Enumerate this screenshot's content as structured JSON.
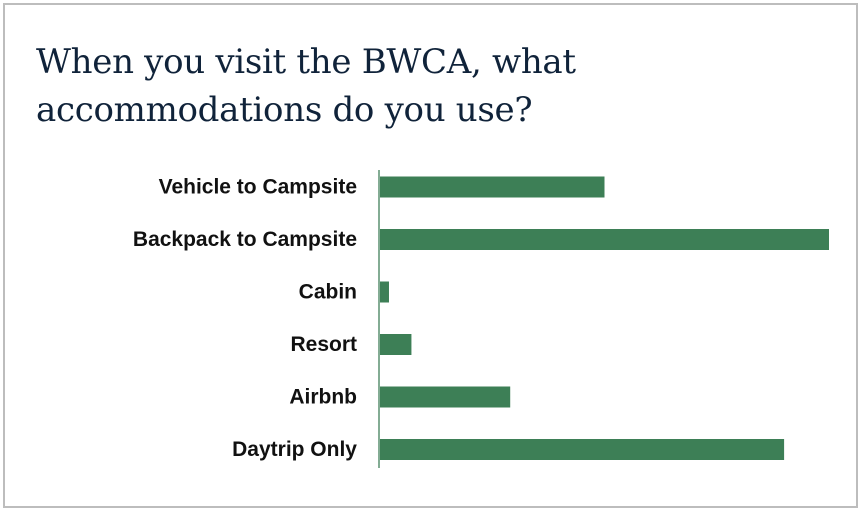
{
  "chart_data": {
    "type": "bar",
    "orientation": "horizontal",
    "title": "When you visit the BWCA, what accommodations do you use?",
    "xlabel": "",
    "ylabel": "",
    "categories": [
      "Vehicle to Campsite",
      "Backpack to Campsite",
      "Cabin",
      "Resort",
      "Airbnb",
      "Daytrip Only"
    ],
    "values": [
      50,
      100,
      2,
      7,
      29,
      90
    ],
    "xlim": [
      0,
      100
    ],
    "grid": false,
    "legend": "none",
    "bar_color": "#3d7f56",
    "axis_color": "#5a9070"
  }
}
